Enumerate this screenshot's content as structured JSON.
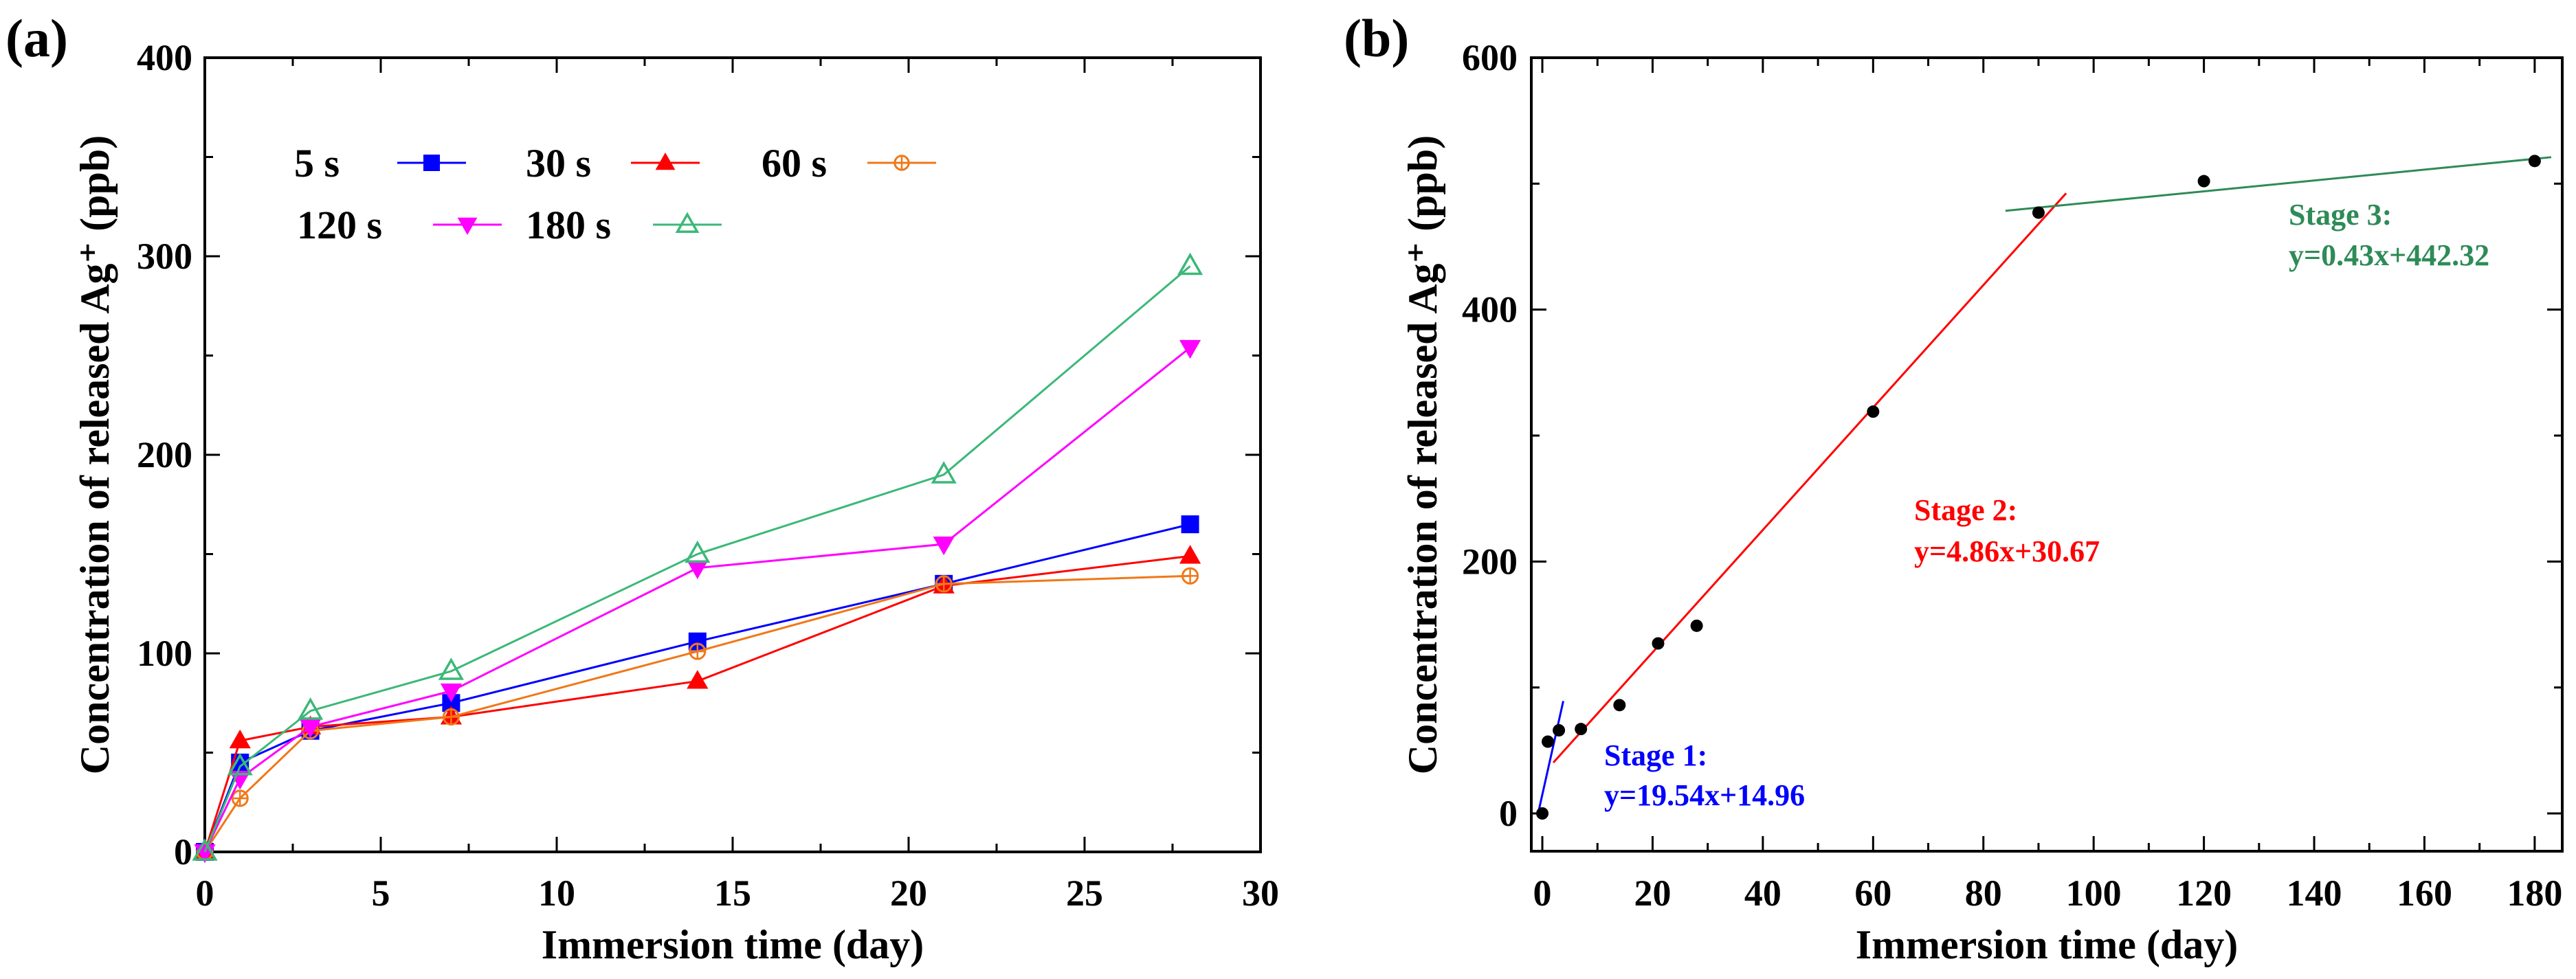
{
  "chart_data": [
    {
      "panel_label": "(a)",
      "type": "line",
      "xlabel": "Immersion time (day)",
      "ylabel": "Concentration of released Ag⁺ (ppb)",
      "xlim": [
        0,
        30
      ],
      "ylim": [
        0,
        400
      ],
      "xticks": [
        "0",
        "5",
        "10",
        "15",
        "20",
        "25",
        "30"
      ],
      "yticks": [
        "0",
        "100",
        "200",
        "300",
        "400"
      ],
      "x": [
        0,
        1,
        3,
        7,
        14,
        21,
        28
      ],
      "series": [
        {
          "name": "5 s",
          "color": "#0000ff",
          "marker": "square-filled",
          "values": [
            0,
            45,
            61,
            75,
            106,
            135,
            165
          ]
        },
        {
          "name": "30 s",
          "color": "#ff0000",
          "marker": "triangle-up-filled",
          "values": [
            0,
            56,
            63,
            68,
            86,
            134,
            149
          ]
        },
        {
          "name": "60 s",
          "color": "#f07818",
          "marker": "circle-cross",
          "values": [
            0,
            27,
            61,
            68,
            101,
            135,
            139
          ]
        },
        {
          "name": "120 s",
          "color": "#ff00ff",
          "marker": "triangle-down-filled",
          "values": [
            0,
            37,
            63,
            81,
            143,
            155,
            254
          ]
        },
        {
          "name": "180 s",
          "color": "#3cb878",
          "marker": "triangle-up-open",
          "values": [
            0,
            43,
            71,
            91,
            150,
            190,
            295
          ]
        }
      ],
      "legend": {
        "placement": "top-left",
        "rows": [
          [
            "5 s",
            "30 s",
            "60 s"
          ],
          [
            "120 s",
            "180 s"
          ]
        ]
      }
    },
    {
      "panel_label": "(b)",
      "type": "scatter",
      "xlabel": "Immersion time (day)",
      "ylabel": "Concentration of released Ag⁺ (ppb)",
      "xlim": [
        -2,
        185
      ],
      "ylim": [
        -30,
        600
      ],
      "xticks": [
        "0",
        "20",
        "40",
        "60",
        "80",
        "100",
        "120",
        "140",
        "160",
        "180"
      ],
      "yticks": [
        "0",
        "200",
        "400",
        "600"
      ],
      "points": {
        "color": "#000000",
        "x": [
          0,
          1,
          3,
          7,
          14,
          21,
          28,
          60,
          90,
          120,
          180
        ],
        "y": [
          0,
          57,
          66,
          67,
          86,
          135,
          149,
          319,
          477,
          502,
          518
        ]
      },
      "fits": [
        {
          "name": "Stage 1:",
          "equation": "y=19.54x+14.96",
          "color": "#0000ff",
          "slope": 19.54,
          "intercept": 14.96,
          "x_range": [
            -0.8,
            3.8
          ]
        },
        {
          "name": "Stage 2:",
          "equation": "y=4.86x+30.67",
          "color": "#ff0000",
          "slope": 4.86,
          "intercept": 30.67,
          "x_range": [
            2,
            95
          ]
        },
        {
          "name": "Stage 3:",
          "equation": "y=0.43x+442.32",
          "color": "#2e8b57",
          "slope": 0.43,
          "intercept": 442.32,
          "x_range": [
            84,
            183
          ]
        }
      ]
    }
  ]
}
